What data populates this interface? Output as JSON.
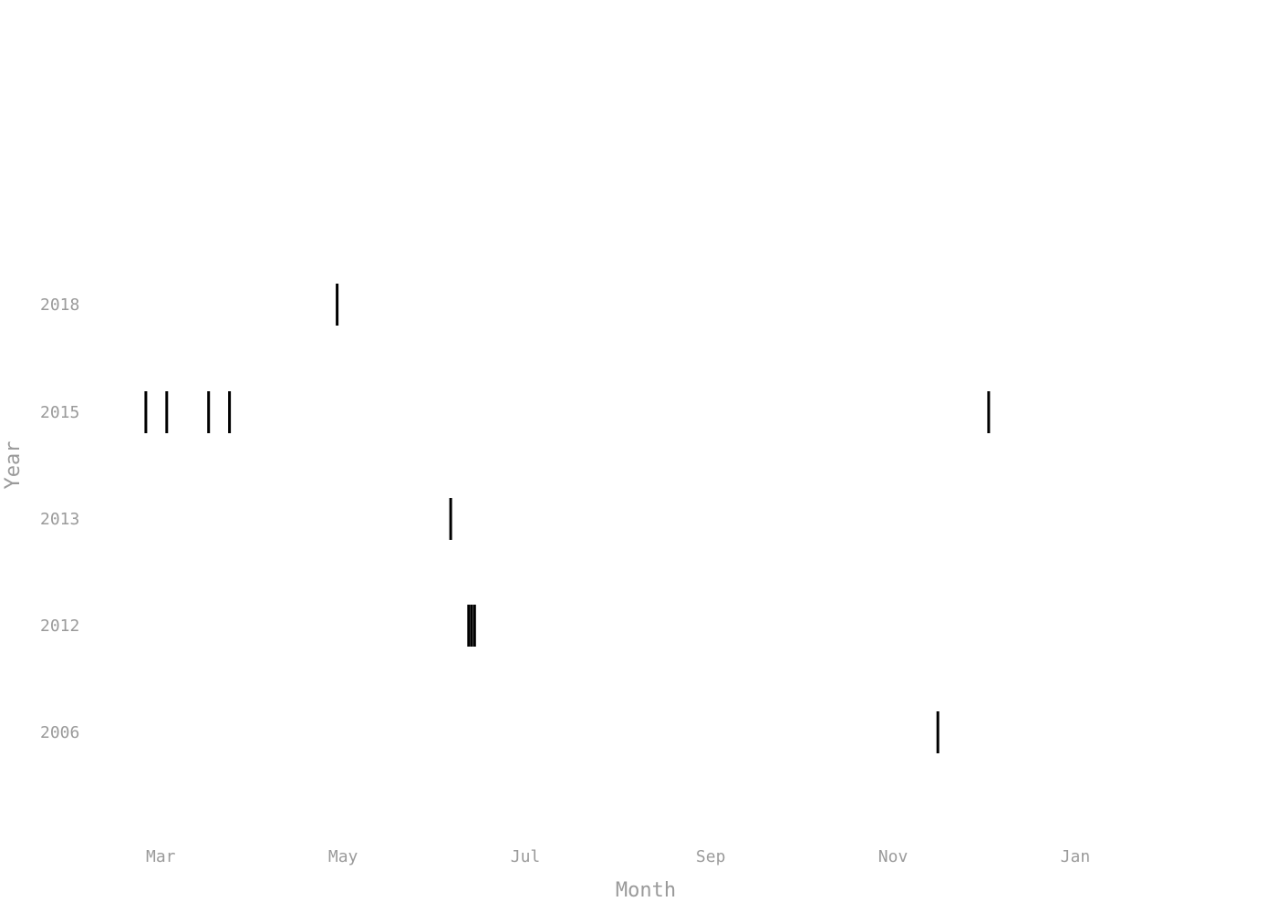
{
  "chart_data": {
    "type": "scatter",
    "marker": "vertical-tick",
    "xlabel": "Month",
    "ylabel": "Year",
    "x_ticks": [
      "Mar",
      "May",
      "Jul",
      "Sep",
      "Nov",
      "Jan"
    ],
    "y_categories": [
      "2006",
      "2012",
      "2013",
      "2015",
      "2018"
    ],
    "x_range": [
      "Feb 10",
      "Feb 10 (next year)"
    ],
    "grid": false,
    "legend": "none",
    "mark_color": "#000000",
    "text_color": "#9a9a9a",
    "points": [
      {
        "year": "2018",
        "date": "Apr 29"
      },
      {
        "year": "2015",
        "date": "Feb 24"
      },
      {
        "year": "2015",
        "date": "Mar 3"
      },
      {
        "year": "2015",
        "date": "Mar 17"
      },
      {
        "year": "2015",
        "date": "Mar 24"
      },
      {
        "year": "2015",
        "date": "Dec 3"
      },
      {
        "year": "2013",
        "date": "Jun 6"
      },
      {
        "year": "2012",
        "date": "Jun 12"
      },
      {
        "year": "2012",
        "date": "Jun 13"
      },
      {
        "year": "2012",
        "date": "Jun 14"
      },
      {
        "year": "2006",
        "date": "Nov 16"
      }
    ]
  }
}
